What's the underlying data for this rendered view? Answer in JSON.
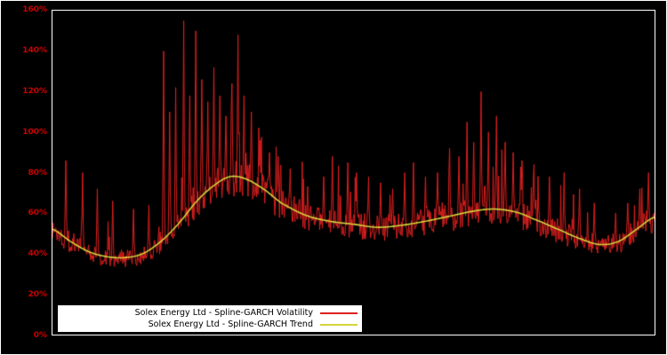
{
  "chart": {
    "background": "#000000",
    "frame_color": "#ffffff",
    "label_color": "#cc0000",
    "y_ticks": [
      "0%",
      "20%",
      "40%",
      "60%",
      "80%",
      "100%",
      "120%",
      "140%",
      "160%"
    ],
    "y_tick_values": [
      0,
      20,
      40,
      60,
      80,
      100,
      120,
      140,
      160
    ],
    "legend": {
      "items": [
        {
          "label": "Solex Energy Ltd - Spline-GARCH Volatility",
          "color": "#dd1f1f"
        },
        {
          "label": "Solex Energy Ltd - Spline-GARCH Trend",
          "color": "#d4d43c"
        }
      ]
    }
  },
  "chart_data": {
    "type": "line",
    "title": "",
    "xlabel": "",
    "ylabel": "",
    "x_range": [
      0,
      1
    ],
    "ylim": [
      0,
      160
    ],
    "y_unit": "%",
    "grid": false,
    "legend_position": "bottom-left-inside",
    "series": [
      {
        "name": "Solex Energy Ltd - Spline-GARCH Volatility",
        "color": "#dd1f1f",
        "style": "noisy",
        "points_count": 900,
        "noise_seed": 1337,
        "noise_band_low": 0.87,
        "noise_band_high": 1.11,
        "burst_probability": 0.08,
        "spikes": [
          [
            0.022,
            86
          ],
          [
            0.05,
            80
          ],
          [
            0.075,
            72
          ],
          [
            0.1,
            66
          ],
          [
            0.135,
            62
          ],
          [
            0.16,
            64
          ],
          [
            0.185,
            140
          ],
          [
            0.195,
            110
          ],
          [
            0.205,
            122
          ],
          [
            0.218,
            155
          ],
          [
            0.228,
            118
          ],
          [
            0.238,
            150
          ],
          [
            0.248,
            126
          ],
          [
            0.258,
            115
          ],
          [
            0.268,
            132
          ],
          [
            0.278,
            118
          ],
          [
            0.288,
            108
          ],
          [
            0.298,
            124
          ],
          [
            0.308,
            148
          ],
          [
            0.318,
            118
          ],
          [
            0.33,
            110
          ],
          [
            0.345,
            96
          ],
          [
            0.36,
            90
          ],
          [
            0.375,
            88
          ],
          [
            0.395,
            82
          ],
          [
            0.45,
            78
          ],
          [
            0.465,
            88
          ],
          [
            0.49,
            85
          ],
          [
            0.505,
            80
          ],
          [
            0.525,
            78
          ],
          [
            0.545,
            75
          ],
          [
            0.565,
            72
          ],
          [
            0.585,
            80
          ],
          [
            0.6,
            85
          ],
          [
            0.62,
            78
          ],
          [
            0.64,
            80
          ],
          [
            0.66,
            92
          ],
          [
            0.675,
            88
          ],
          [
            0.688,
            105
          ],
          [
            0.7,
            95
          ],
          [
            0.712,
            120
          ],
          [
            0.724,
            100
          ],
          [
            0.738,
            108
          ],
          [
            0.752,
            95
          ],
          [
            0.765,
            90
          ],
          [
            0.78,
            86
          ],
          [
            0.8,
            84
          ],
          [
            0.825,
            78
          ],
          [
            0.85,
            80
          ],
          [
            0.875,
            72
          ],
          [
            0.9,
            65
          ],
          [
            0.935,
            60
          ],
          [
            0.955,
            65
          ],
          [
            0.975,
            72
          ],
          [
            0.99,
            80
          ]
        ]
      },
      {
        "name": "Solex Energy Ltd - Spline-GARCH Trend",
        "color": "#d4d43c",
        "style": "smooth",
        "knots": [
          [
            0.0,
            52
          ],
          [
            0.03,
            46
          ],
          [
            0.06,
            41
          ],
          [
            0.09,
            38.5
          ],
          [
            0.12,
            38
          ],
          [
            0.15,
            40
          ],
          [
            0.18,
            46
          ],
          [
            0.21,
            55
          ],
          [
            0.24,
            66
          ],
          [
            0.27,
            74
          ],
          [
            0.295,
            78
          ],
          [
            0.32,
            77
          ],
          [
            0.35,
            72
          ],
          [
            0.38,
            65
          ],
          [
            0.42,
            59
          ],
          [
            0.46,
            56
          ],
          [
            0.5,
            54.5
          ],
          [
            0.54,
            53
          ],
          [
            0.58,
            54
          ],
          [
            0.62,
            56
          ],
          [
            0.66,
            58.5
          ],
          [
            0.7,
            61
          ],
          [
            0.735,
            62
          ],
          [
            0.77,
            60.5
          ],
          [
            0.8,
            57
          ],
          [
            0.84,
            52
          ],
          [
            0.88,
            47
          ],
          [
            0.91,
            44.5
          ],
          [
            0.94,
            46
          ],
          [
            0.97,
            52
          ],
          [
            1.0,
            58
          ]
        ]
      }
    ]
  }
}
